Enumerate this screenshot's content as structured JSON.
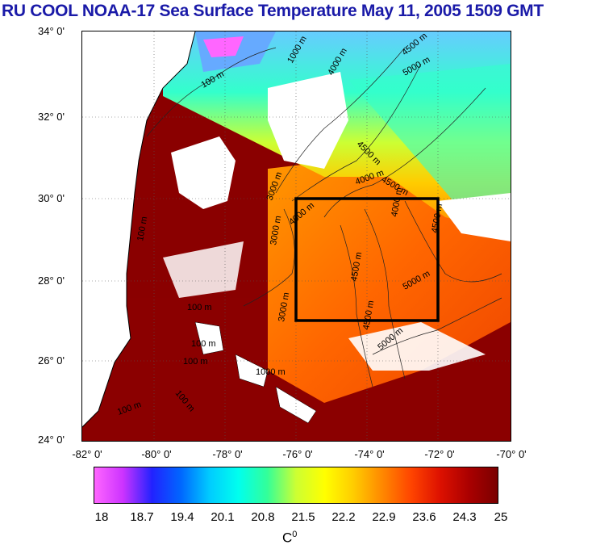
{
  "title": "RU COOL  NOAA-17 Sea Surface Temperature May 11, 2005 1509 GMT",
  "lat_labels": [
    "34° 0'",
    "32° 0'",
    "30° 0'",
    "28° 0'",
    "26° 0'",
    "24° 0'"
  ],
  "lon_labels": [
    "-82° 0'",
    "-80° 0'",
    "-78° 0'",
    "-76° 0'",
    "-74° 0'",
    "-72° 0'",
    "-70° 0'"
  ],
  "colorbar": {
    "ticks": [
      "18",
      "18.7",
      "19.4",
      "20.1",
      "20.8",
      "21.5",
      "22.2",
      "22.9",
      "23.6",
      "24.3",
      "25"
    ],
    "unit_base": "C",
    "unit_sup": "0",
    "colors": [
      "#ff66ff",
      "#cc33ff",
      "#2222ff",
      "#0066ff",
      "#00ccff",
      "#00ffee",
      "#33ff99",
      "#ccff33",
      "#ffff00",
      "#ffcc00",
      "#ff8800",
      "#ff4400",
      "#dd1100",
      "#aa0000",
      "#7a0000"
    ]
  },
  "contour_labels": [
    "100 m",
    "1000 m",
    "3000 m",
    "4000 m",
    "4500 m",
    "5000 m",
    "4500 m",
    "4000 m",
    "4500 m",
    "4000 m",
    "3000 m",
    "100 m",
    "4500 m",
    "5000 m",
    "3000 m",
    "4500 m",
    "100 m",
    "100 m",
    "100 m",
    "1000 m",
    "100 m",
    "100 m",
    "4500 m",
    "5000 m",
    "4000 m"
  ],
  "colors": {
    "title": "#1a1aa8",
    "land": "#ffffff",
    "study_box": "#000000"
  }
}
